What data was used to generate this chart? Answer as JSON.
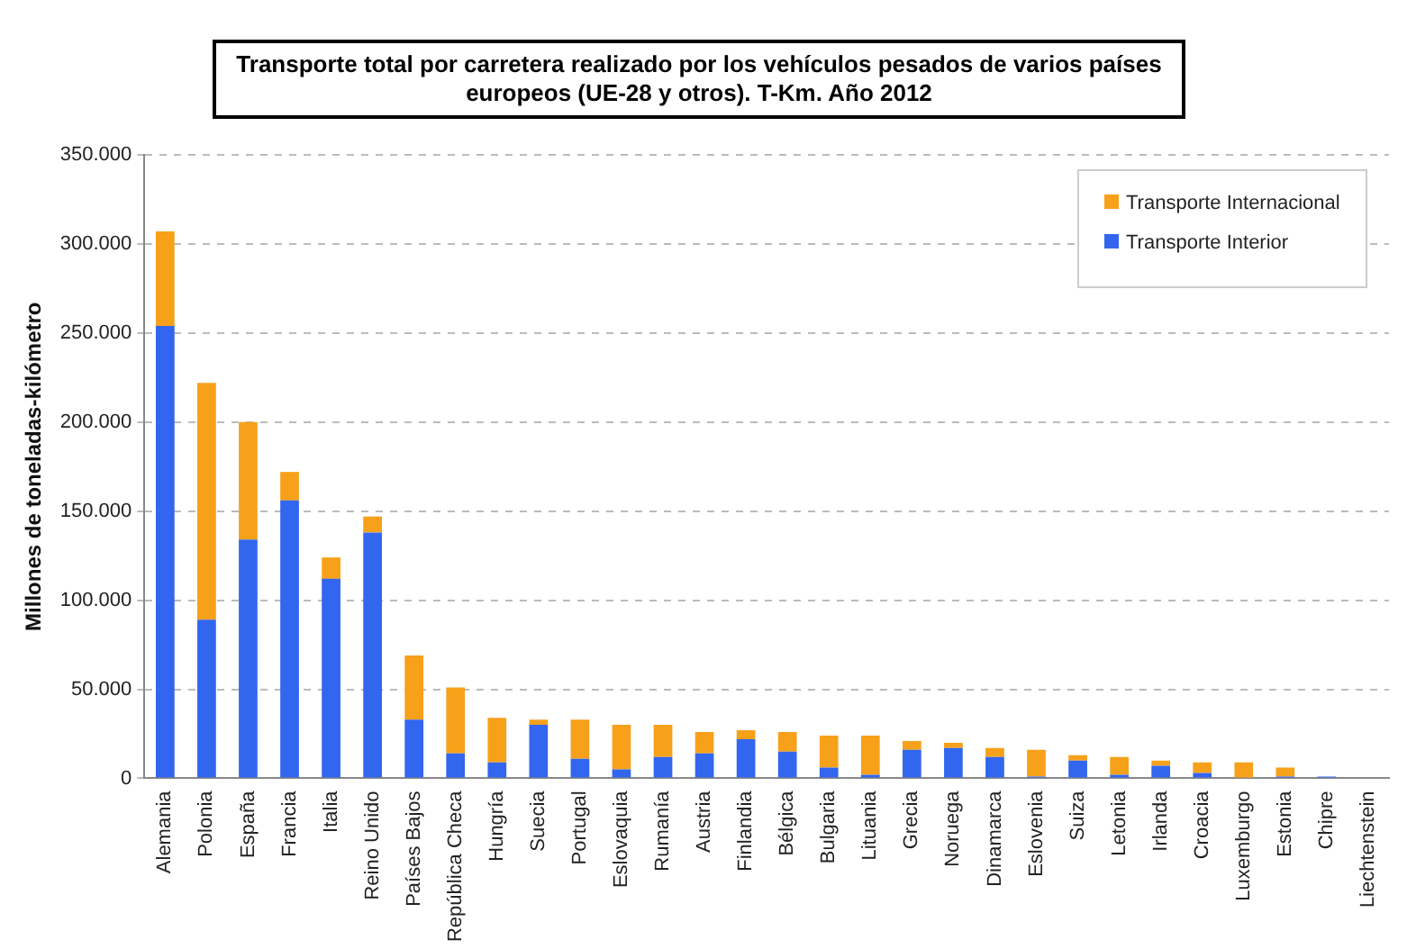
{
  "chart_data": {
    "type": "bar",
    "title": "Transporte total por carretera realizado por los vehículos pesados de varios países europeos (UE-28 y otros). T-Km. Año 2012",
    "ylabel": "Millones de toneladas-kilómetro",
    "categories": [
      "Alemania",
      "Polonia",
      "España",
      "Francia",
      "Italia",
      "Reino Unido",
      "Países Bajos",
      "República Checa",
      "Hungría",
      "Suecia",
      "Portugal",
      "Eslovaquia",
      "Rumanía",
      "Austria",
      "Finlandia",
      "Bélgica",
      "Bulgaria",
      "Lituania",
      "Grecia",
      "Noruega",
      "Dinamarca",
      "Eslovenia",
      "Suiza",
      "Letonia",
      "Irlanda",
      "Croacia",
      "Luxemburgo",
      "Estonia",
      "Chipre",
      "Liechtenstein"
    ],
    "stacked": true,
    "series": [
      {
        "name": "Transporte Interior",
        "color": "#3366ee",
        "values": [
          254000,
          89000,
          134000,
          156000,
          112000,
          138000,
          33000,
          14000,
          9000,
          30000,
          11000,
          5000,
          12000,
          14000,
          22000,
          15000,
          6000,
          2000,
          16000,
          17000,
          12000,
          1000,
          10000,
          2000,
          7000,
          3000,
          0,
          1000,
          1000,
          0
        ]
      },
      {
        "name": "Transporte Internacional",
        "color": "#f7a11a",
        "values": [
          53000,
          133000,
          66000,
          16000,
          12000,
          9000,
          36000,
          37000,
          25000,
          3000,
          22000,
          25000,
          18000,
          12000,
          5000,
          11000,
          18000,
          22000,
          5000,
          3000,
          5000,
          15000,
          3000,
          10000,
          3000,
          6000,
          9000,
          5000,
          0,
          0
        ]
      }
    ],
    "ylim": [
      0,
      350000
    ],
    "yticks": [
      {
        "value": 0,
        "label": "0"
      },
      {
        "value": 50000,
        "label": "50.000"
      },
      {
        "value": 100000,
        "label": "100.000"
      },
      {
        "value": 150000,
        "label": "150.000"
      },
      {
        "value": 200000,
        "label": "200.000"
      },
      {
        "value": 250000,
        "label": "250.000"
      },
      {
        "value": 300000,
        "label": "300.000"
      },
      {
        "value": 350000,
        "label": "350.000"
      }
    ],
    "grid": "y",
    "legend": "top right"
  }
}
